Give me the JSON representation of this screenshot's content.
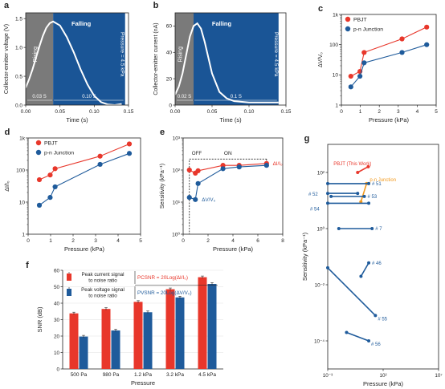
{
  "colors": {
    "red": "#e8372b",
    "blue": "#1f5b9b",
    "orange": "#f39a1e",
    "gray": "#7a7a7a",
    "panel_blue": "#1a5596"
  },
  "chart_data": [
    {
      "id": "a",
      "panel_label": "a",
      "type": "area",
      "xlabel": "Time (s)",
      "ylabel": "Collector-emitter voltage (V)",
      "xlim": [
        0,
        0.15
      ],
      "ylim": [
        0,
        1.6
      ],
      "xticks": [
        "0.00",
        "0.05",
        "0.10",
        "0.15"
      ],
      "yticks": [
        "0.0",
        "0.5",
        "1.0",
        "1.5"
      ],
      "rising_label": "Rising",
      "falling_label": "Falling",
      "pressure_label": "Pressure = 4.5 kPa",
      "rise_duration": "0.03 S",
      "fall_duration": "0.10 S",
      "rising_end": 0.04,
      "signal_end": 0.145,
      "x": [
        0,
        0.005,
        0.01,
        0.015,
        0.02,
        0.025,
        0.03,
        0.035,
        0.04,
        0.05,
        0.06,
        0.07,
        0.08,
        0.09,
        0.1,
        0.11,
        0.12,
        0.13,
        0.14
      ],
      "y": [
        0.3,
        0.45,
        0.62,
        0.82,
        1.02,
        1.2,
        1.34,
        1.42,
        1.45,
        1.38,
        1.18,
        0.92,
        0.62,
        0.36,
        0.16,
        0.05,
        0.01,
        0.0,
        0.02
      ]
    },
    {
      "id": "b",
      "panel_label": "b",
      "type": "area",
      "xlabel": "Time (s)",
      "ylabel": "Collector-emitter current (nA)",
      "xlim": [
        0,
        0.15
      ],
      "ylim": [
        0,
        70
      ],
      "xticks": [
        "0.00",
        "0.05",
        "0.10",
        "0.15"
      ],
      "yticks": [
        "0",
        "20",
        "40",
        "60"
      ],
      "rising_label": "Rising",
      "falling_label": "Falling",
      "pressure_label": "Pressure = 4.5 kPa",
      "rise_duration": "0.02 S",
      "fall_duration": "0.1 S",
      "rising_end": 0.025,
      "signal_end": 0.14,
      "x": [
        0,
        0.005,
        0.01,
        0.015,
        0.02,
        0.025,
        0.03,
        0.035,
        0.04,
        0.045,
        0.05,
        0.06,
        0.07,
        0.08,
        0.1,
        0.12,
        0.14
      ],
      "y": [
        8,
        14,
        24,
        38,
        52,
        60,
        62,
        58,
        48,
        36,
        24,
        10,
        5,
        3,
        2,
        2,
        2
      ]
    },
    {
      "id": "c",
      "panel_label": "c",
      "type": "line",
      "xlabel": "Pressure (kPa)",
      "ylabel": "ΔV/V₀",
      "xlim": [
        0,
        5
      ],
      "ylim": [
        1,
        1000
      ],
      "yscale": "log",
      "xticks": [
        "0",
        "1",
        "2",
        "3",
        "4",
        "5"
      ],
      "yticks": [
        "1",
        "10",
        "100",
        "1k"
      ],
      "legend_position": "top-left",
      "series": [
        {
          "name": "PBJT",
          "color": "red",
          "x": [
            0.5,
            0.98,
            1.2,
            3.2,
            4.5
          ],
          "y": [
            9,
            13,
            55,
            155,
            380
          ]
        },
        {
          "name": "p-n Junction",
          "color": "blue",
          "x": [
            0.5,
            0.98,
            1.2,
            3.2,
            4.5
          ],
          "y": [
            4,
            9,
            25,
            55,
            100
          ]
        }
      ]
    },
    {
      "id": "d",
      "panel_label": "d",
      "type": "line",
      "xlabel": "Pressure (kPa)",
      "ylabel": "ΔI/I₀",
      "xlim": [
        0,
        5
      ],
      "ylim": [
        1,
        1000
      ],
      "yscale": "log",
      "xticks": [
        "0",
        "1",
        "2",
        "3",
        "4",
        "5"
      ],
      "yticks": [
        "1",
        "10",
        "100",
        "1k"
      ],
      "legend_position": "top-left",
      "series": [
        {
          "name": "PBJT",
          "color": "red",
          "x": [
            0.5,
            0.98,
            1.2,
            3.2,
            4.5
          ],
          "y": [
            50,
            70,
            110,
            270,
            650
          ]
        },
        {
          "name": "p-n Junction",
          "color": "blue",
          "x": [
            0.5,
            0.98,
            1.2,
            3.2,
            4.5
          ],
          "y": [
            8,
            14,
            30,
            150,
            330
          ]
        }
      ]
    },
    {
      "id": "e",
      "panel_label": "e",
      "type": "line",
      "xlabel": "Pressure (kPa)",
      "ylabel": "Sensitivity (kPa⁻¹)",
      "xlim": [
        0,
        8
      ],
      "ylim": [
        1,
        1000
      ],
      "yscale": "log",
      "xticks": [
        "0",
        "2",
        "4",
        "6",
        "8"
      ],
      "yticks": [
        "10⁰",
        "10¹",
        "10²",
        "10³"
      ],
      "off_label": "OFF",
      "on_label": "ON",
      "off_threshold": 0.5,
      "series": [
        {
          "name": "ΔI/I₀",
          "color": "red",
          "x": [
            0.5,
            0.98,
            1.2,
            3.2,
            4.5,
            6.7
          ],
          "y": [
            100,
            80,
            95,
            140,
            140,
            160
          ]
        },
        {
          "name": "ΔV/V₀",
          "color": "blue",
          "x": [
            0.5,
            0.98,
            1.2,
            3.2,
            4.5,
            6.7
          ],
          "y": [
            14,
            12,
            38,
            110,
            125,
            140
          ]
        }
      ]
    },
    {
      "id": "f",
      "panel_label": "f",
      "type": "bar",
      "xlabel": "Pressure",
      "ylabel": "SNR (dB)",
      "ylim": [
        0,
        60
      ],
      "yticks": [
        "0",
        "10",
        "20",
        "30",
        "40",
        "50",
        "60"
      ],
      "categories": [
        "500 Pa",
        "980 Pa",
        "1.2 kPa",
        "3.2 kPa",
        "4.5 kPa"
      ],
      "legend": [
        {
          "label_line1": "Peak current signal",
          "label_line2": "to noise ratio",
          "formula": "PCSNR = 20Log(ΔI/I₀)",
          "color": "red"
        },
        {
          "label_line1": "Peak voltage signal",
          "label_line2": "to noise ratio",
          "formula": "PVSNR = 20Log(ΔV/V₀)",
          "color": "blue"
        }
      ],
      "series": [
        {
          "name": "PCSNR",
          "color": "red",
          "values": [
            33.8,
            36.5,
            40.8,
            48.5,
            55.8
          ]
        },
        {
          "name": "PVSNR",
          "color": "blue",
          "values": [
            19.7,
            23.4,
            34.5,
            43.5,
            51.7
          ]
        }
      ]
    },
    {
      "id": "g",
      "panel_label": "g",
      "type": "scatter",
      "xlabel": "Pressure (kPa)",
      "ylabel": "Sensitivity (kPa⁻¹)",
      "xlim": [
        0.001,
        10000000.0
      ],
      "ylim": [
        1e-05,
        1000.0
      ],
      "xscale": "log",
      "yscale": "log",
      "xticks": [
        "10⁻³",
        "10²",
        "10⁷"
      ],
      "yticks": [
        "10⁻⁴",
        "10⁻²",
        "10⁰",
        "10²"
      ],
      "series": [
        {
          "name": "PBJT (This Work)",
          "color": "red",
          "points": [
            [
              0.5,
              100
            ],
            [
              4.5,
              160
            ]
          ]
        },
        {
          "name": "p-n Junction",
          "color": "orange",
          "points": [
            [
              0.98,
              9
            ],
            [
              3.2,
              40
            ]
          ]
        },
        {
          "name": "# 51",
          "color": "blue",
          "points": [
            [
              0.001,
              40
            ],
            [
              5,
              40
            ]
          ]
        },
        {
          "name": "# 52",
          "color": "blue",
          "points": [
            [
              0.001,
              18
            ],
            [
              0.5,
              18
            ]
          ]
        },
        {
          "name": "# 53",
          "color": "blue",
          "points": [
            [
              0.002,
              14
            ],
            [
              2,
              14
            ]
          ]
        },
        {
          "name": "# 54",
          "color": "blue",
          "points": [
            [
              0.001,
              8
            ],
            [
              5,
              8
            ]
          ]
        },
        {
          "name": "# 7",
          "color": "blue",
          "points": [
            [
              0.01,
              1
            ],
            [
              10,
              1
            ]
          ]
        },
        {
          "name": "# 46",
          "color": "blue",
          "points": [
            [
              1,
              0.02
            ],
            [
              5,
              0.06
            ]
          ]
        },
        {
          "name": "# 55",
          "color": "blue",
          "points": [
            [
              0.001,
              0.04
            ],
            [
              20,
              0.0008
            ]
          ]
        },
        {
          "name": "# 56",
          "color": "blue",
          "points": [
            [
              0.05,
              0.0002
            ],
            [
              5,
              0.0001
            ]
          ]
        }
      ]
    }
  ]
}
